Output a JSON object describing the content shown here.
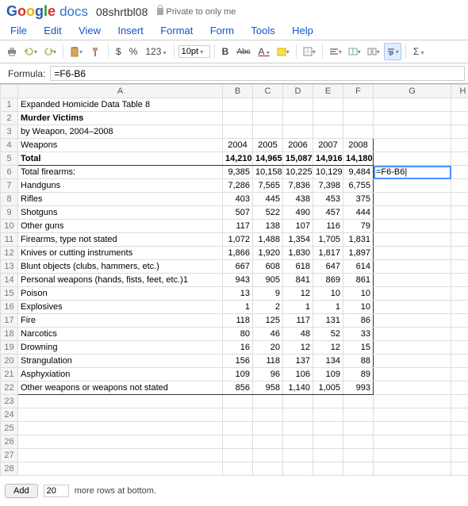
{
  "app": {
    "brand_docs": "docs",
    "docname": "08shrtbl08",
    "privacy": "Private to only me"
  },
  "menu": {
    "file": "File",
    "edit": "Edit",
    "view": "View",
    "insert": "Insert",
    "format": "Format",
    "form": "Form",
    "tools": "Tools",
    "help": "Help"
  },
  "toolbar": {
    "dollar": "$",
    "percent": "%",
    "num123": "123",
    "fontsize": "10pt",
    "bold": "B",
    "strike": "Abc",
    "textcolor": "A",
    "bgcolor_title": "bg",
    "sigma": "Σ"
  },
  "formula": {
    "label": "Formula:",
    "value": "=F6-B6"
  },
  "sheet": {
    "columns": [
      "A",
      "B",
      "C",
      "D",
      "E",
      "F",
      "G",
      "H"
    ],
    "title1": "Expanded Homicide Data Table 8",
    "title2": "Murder Victims",
    "title3": "by Weapon, 2004–2008",
    "header": {
      "label": "Weapons",
      "years": [
        "2004",
        "2005",
        "2006",
        "2007",
        "2008"
      ]
    },
    "total": {
      "label": "Total",
      "vals": [
        "14,210",
        "14,965",
        "15,087",
        "14,916",
        "14,180"
      ]
    },
    "rows": [
      {
        "label": "Total firearms:",
        "vals": [
          "9,385",
          "10,158",
          "10,225",
          "10,129",
          "9,484"
        ]
      },
      {
        "label": "Handguns",
        "vals": [
          "7,286",
          "7,565",
          "7,836",
          "7,398",
          "6,755"
        ]
      },
      {
        "label": "Rifles",
        "vals": [
          "403",
          "445",
          "438",
          "453",
          "375"
        ]
      },
      {
        "label": "Shotguns",
        "vals": [
          "507",
          "522",
          "490",
          "457",
          "444"
        ]
      },
      {
        "label": "Other guns",
        "vals": [
          "117",
          "138",
          "107",
          "116",
          "79"
        ]
      },
      {
        "label": "Firearms, type not stated",
        "vals": [
          "1,072",
          "1,488",
          "1,354",
          "1,705",
          "1,831"
        ]
      },
      {
        "label": "Knives or cutting instruments",
        "vals": [
          "1,866",
          "1,920",
          "1,830",
          "1,817",
          "1,897"
        ]
      },
      {
        "label": "Blunt objects (clubs, hammers, etc.)",
        "vals": [
          "667",
          "608",
          "618",
          "647",
          "614"
        ]
      },
      {
        "label": "Personal weapons (hands, fists, feet, etc.)1",
        "vals": [
          "943",
          "905",
          "841",
          "869",
          "861"
        ]
      },
      {
        "label": "Poison",
        "vals": [
          "13",
          "9",
          "12",
          "10",
          "10"
        ]
      },
      {
        "label": "Explosives",
        "vals": [
          "1",
          "2",
          "1",
          "1",
          "10"
        ]
      },
      {
        "label": "Fire",
        "vals": [
          "118",
          "125",
          "117",
          "131",
          "86"
        ]
      },
      {
        "label": "Narcotics",
        "vals": [
          "80",
          "46",
          "48",
          "52",
          "33"
        ]
      },
      {
        "label": "Drowning",
        "vals": [
          "16",
          "20",
          "12",
          "12",
          "15"
        ]
      },
      {
        "label": "Strangulation",
        "vals": [
          "156",
          "118",
          "137",
          "134",
          "88"
        ]
      },
      {
        "label": "Asphyxiation",
        "vals": [
          "109",
          "96",
          "106",
          "109",
          "89"
        ]
      },
      {
        "label": "Other weapons or weapons not stated",
        "vals": [
          "856",
          "958",
          "1,140",
          "1,005",
          "993"
        ]
      }
    ],
    "active_cell": {
      "col": "G",
      "row": 6,
      "display": "=F6-B6"
    },
    "empty_rows": [
      23,
      24,
      25,
      26,
      27,
      28
    ]
  },
  "footer": {
    "add": "Add",
    "count": "20",
    "more": "more rows at bottom."
  }
}
